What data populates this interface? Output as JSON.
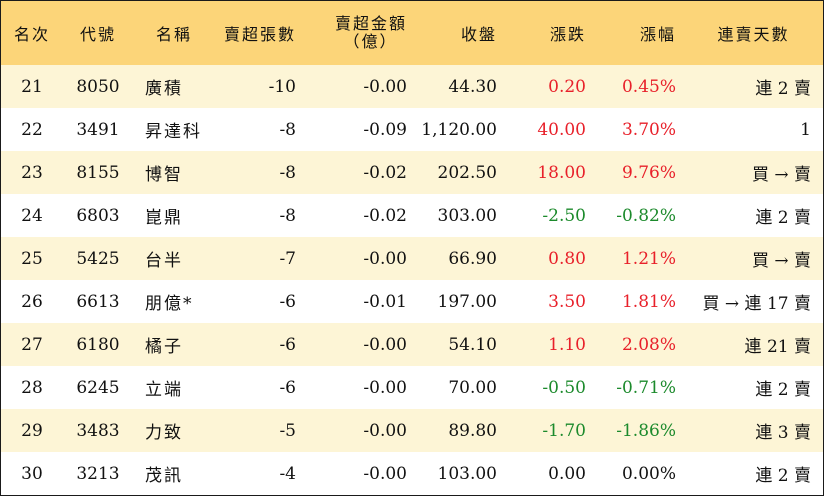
{
  "headers": [
    "名次",
    "代號",
    "名稱",
    "賣超張數",
    "賣超金額",
    "（億）",
    "收盤",
    "漲跌",
    "漲幅",
    "連賣天數"
  ],
  "colors": {
    "header_bg": "#fcd579",
    "odd_row_bg": "#fdf5d6",
    "up": "#e8202a",
    "down": "#1c8a2c"
  },
  "rows": [
    {
      "rank": "21",
      "code": "8050",
      "name": "廣積",
      "shares": "-10",
      "amount": "-0.00",
      "close": "44.30",
      "change": "0.20",
      "pct": "0.45%",
      "trend": "up",
      "streak": "連 2 賣"
    },
    {
      "rank": "22",
      "code": "3491",
      "name": "昇達科",
      "shares": "-8",
      "amount": "-0.09",
      "close": "1,120.00",
      "change": "40.00",
      "pct": "3.70%",
      "trend": "up",
      "streak": "1"
    },
    {
      "rank": "23",
      "code": "8155",
      "name": "博智",
      "shares": "-8",
      "amount": "-0.02",
      "close": "202.50",
      "change": "18.00",
      "pct": "9.76%",
      "trend": "up",
      "streak": "買 → 賣"
    },
    {
      "rank": "24",
      "code": "6803",
      "name": "崑鼎",
      "shares": "-8",
      "amount": "-0.02",
      "close": "303.00",
      "change": "-2.50",
      "pct": "-0.82%",
      "trend": "down",
      "streak": "連 2 賣"
    },
    {
      "rank": "25",
      "code": "5425",
      "name": "台半",
      "shares": "-7",
      "amount": "-0.00",
      "close": "66.90",
      "change": "0.80",
      "pct": "1.21%",
      "trend": "up",
      "streak": "買 → 賣"
    },
    {
      "rank": "26",
      "code": "6613",
      "name": "朋億*",
      "shares": "-6",
      "amount": "-0.01",
      "close": "197.00",
      "change": "3.50",
      "pct": "1.81%",
      "trend": "up",
      "streak": "買 → 連 17 賣"
    },
    {
      "rank": "27",
      "code": "6180",
      "name": "橘子",
      "shares": "-6",
      "amount": "-0.00",
      "close": "54.10",
      "change": "1.10",
      "pct": "2.08%",
      "trend": "up",
      "streak": "連 21 賣"
    },
    {
      "rank": "28",
      "code": "6245",
      "name": "立端",
      "shares": "-6",
      "amount": "-0.00",
      "close": "70.00",
      "change": "-0.50",
      "pct": "-0.71%",
      "trend": "down",
      "streak": "連 2 賣"
    },
    {
      "rank": "29",
      "code": "3483",
      "name": "力致",
      "shares": "-5",
      "amount": "-0.00",
      "close": "89.80",
      "change": "-1.70",
      "pct": "-1.86%",
      "trend": "down",
      "streak": "連 3 賣"
    },
    {
      "rank": "30",
      "code": "3213",
      "name": "茂訊",
      "shares": "-4",
      "amount": "-0.00",
      "close": "103.00",
      "change": "0.00",
      "pct": "0.00%",
      "trend": "flat",
      "streak": "連 2 賣"
    }
  ]
}
